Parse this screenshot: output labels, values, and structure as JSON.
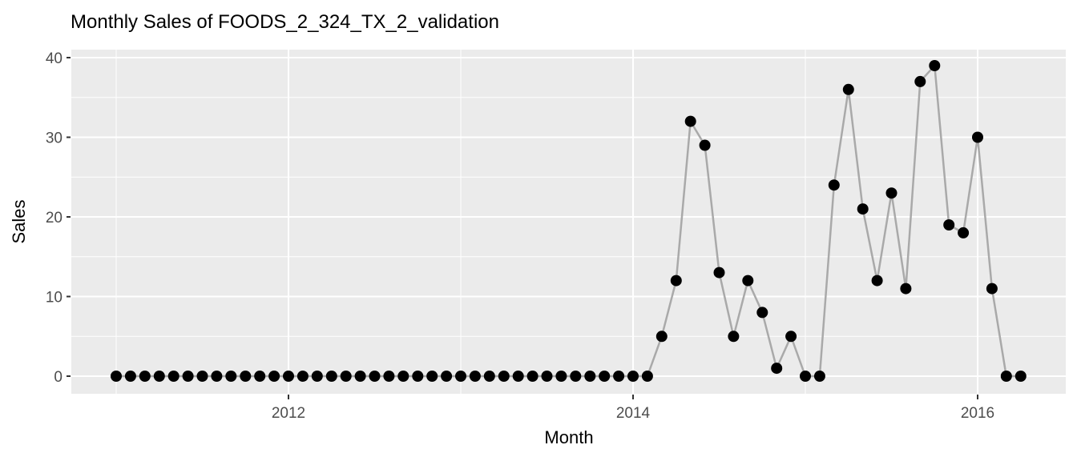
{
  "chart_data": {
    "type": "line",
    "title": "Monthly Sales of FOODS_2_324_TX_2_validation",
    "xlabel": "Month",
    "ylabel": "Sales",
    "legend": "none",
    "grid": true,
    "panel_theme": "ggplot-gray",
    "x_tick_labels": [
      "2012",
      "2014",
      "2016"
    ],
    "x_tick_years": [
      2012,
      2014,
      2016
    ],
    "x_minor_years": [
      2011,
      2013,
      2015
    ],
    "y_ticks": [
      0,
      10,
      20,
      30,
      40
    ],
    "y_minor_ticks": [
      5,
      15,
      25,
      35
    ],
    "ylim": [
      0,
      39
    ],
    "x_range_months": [
      "2011-01",
      "2016-04"
    ],
    "colors": {
      "panel": "#ebebeb",
      "gridline": "#ffffff",
      "line": "#a9a9a9",
      "point": "#000000",
      "tick_label": "#4d4d4d",
      "tick_mark": "#333333",
      "title": "#000000"
    },
    "series": [
      {
        "name": "Sales",
        "months": [
          "2011-01",
          "2011-02",
          "2011-03",
          "2011-04",
          "2011-05",
          "2011-06",
          "2011-07",
          "2011-08",
          "2011-09",
          "2011-10",
          "2011-11",
          "2011-12",
          "2012-01",
          "2012-02",
          "2012-03",
          "2012-04",
          "2012-05",
          "2012-06",
          "2012-07",
          "2012-08",
          "2012-09",
          "2012-10",
          "2012-11",
          "2012-12",
          "2013-01",
          "2013-02",
          "2013-03",
          "2013-04",
          "2013-05",
          "2013-06",
          "2013-07",
          "2013-08",
          "2013-09",
          "2013-10",
          "2013-11",
          "2013-12",
          "2014-01",
          "2014-02",
          "2014-03",
          "2014-04",
          "2014-05",
          "2014-06",
          "2014-07",
          "2014-08",
          "2014-09",
          "2014-10",
          "2014-11",
          "2014-12",
          "2015-01",
          "2015-02",
          "2015-03",
          "2015-04",
          "2015-05",
          "2015-06",
          "2015-07",
          "2015-08",
          "2015-09",
          "2015-10",
          "2015-11",
          "2015-12",
          "2016-01",
          "2016-02",
          "2016-03",
          "2016-04"
        ],
        "values": [
          0,
          0,
          0,
          0,
          0,
          0,
          0,
          0,
          0,
          0,
          0,
          0,
          0,
          0,
          0,
          0,
          0,
          0,
          0,
          0,
          0,
          0,
          0,
          0,
          0,
          0,
          0,
          0,
          0,
          0,
          0,
          0,
          0,
          0,
          0,
          0,
          0,
          0,
          5,
          12,
          32,
          29,
          13,
          5,
          12,
          8,
          1,
          5,
          0,
          0,
          24,
          36,
          21,
          12,
          23,
          11,
          37,
          39,
          19,
          18,
          30,
          11,
          0,
          0
        ]
      }
    ]
  }
}
